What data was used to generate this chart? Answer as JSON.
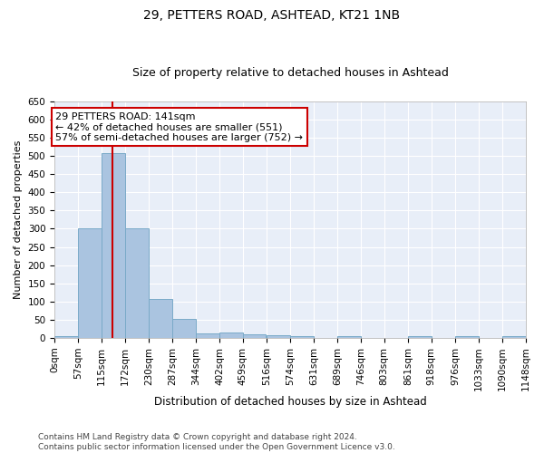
{
  "title1": "29, PETTERS ROAD, ASHTEAD, KT21 1NB",
  "title2": "Size of property relative to detached houses in Ashtead",
  "xlabel": "Distribution of detached houses by size in Ashtead",
  "ylabel": "Number of detached properties",
  "bin_edges": [
    0,
    57,
    115,
    172,
    230,
    287,
    344,
    402,
    459,
    516,
    574,
    631,
    689,
    746,
    803,
    861,
    918,
    976,
    1033,
    1090,
    1148
  ],
  "bin_labels": [
    "0sqm",
    "57sqm",
    "115sqm",
    "172sqm",
    "230sqm",
    "287sqm",
    "344sqm",
    "402sqm",
    "459sqm",
    "516sqm",
    "574sqm",
    "631sqm",
    "689sqm",
    "746sqm",
    "803sqm",
    "861sqm",
    "918sqm",
    "976sqm",
    "1033sqm",
    "1090sqm",
    "1148sqm"
  ],
  "bar_heights": [
    5,
    300,
    507,
    300,
    107,
    53,
    13,
    15,
    10,
    7,
    5,
    0,
    5,
    0,
    0,
    5,
    0,
    5,
    0,
    5
  ],
  "bar_color": "#aac4e0",
  "bar_edge_color": "#7aaac8",
  "property_line_x": 141,
  "property_line_color": "#cc0000",
  "annotation_line1": "29 PETTERS ROAD: 141sqm",
  "annotation_line2": "← 42% of detached houses are smaller (551)",
  "annotation_line3": "57% of semi-detached houses are larger (752) →",
  "annotation_box_color": "#cc0000",
  "annotation_fill_color": "#ffffff",
  "ylim": [
    0,
    650
  ],
  "yticks": [
    0,
    50,
    100,
    150,
    200,
    250,
    300,
    350,
    400,
    450,
    500,
    550,
    600,
    650
  ],
  "bg_color": "#e8eef8",
  "grid_color": "#ffffff",
  "footer_text": "Contains HM Land Registry data © Crown copyright and database right 2024.\nContains public sector information licensed under the Open Government Licence v3.0.",
  "title1_fontsize": 10,
  "title2_fontsize": 9,
  "xlabel_fontsize": 8.5,
  "ylabel_fontsize": 8,
  "tick_fontsize": 7.5,
  "annotation_fontsize": 8,
  "footer_fontsize": 6.5
}
